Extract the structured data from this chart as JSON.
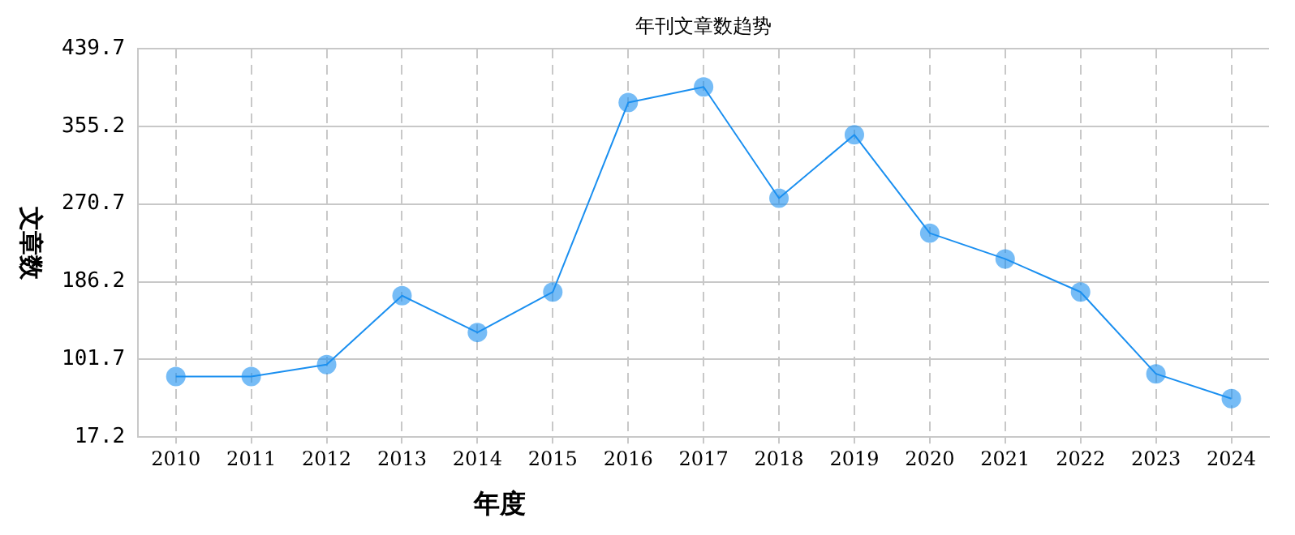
{
  "chart_data": {
    "type": "line",
    "title": "年刊文章数趋势",
    "xlabel": "年度",
    "ylabel": "文章数",
    "categories": [
      "2010",
      "2011",
      "2012",
      "2013",
      "2014",
      "2015",
      "2016",
      "2017",
      "2018",
      "2019",
      "2020",
      "2021",
      "2022",
      "2023",
      "2024"
    ],
    "series": [
      {
        "color": "#1a8ff0",
        "values": [
          83,
          83,
          96,
          171,
          131,
          175,
          381,
          398,
          277,
          346,
          239,
          211,
          175,
          86,
          59
        ]
      }
    ],
    "ylim": [
      17.2,
      439.7
    ],
    "yticks": [
      17.2,
      101.7,
      186.2,
      270.7,
      355.2,
      439.7
    ],
    "grid": true,
    "legend": false,
    "marker": "circle",
    "line_style": "solid"
  }
}
